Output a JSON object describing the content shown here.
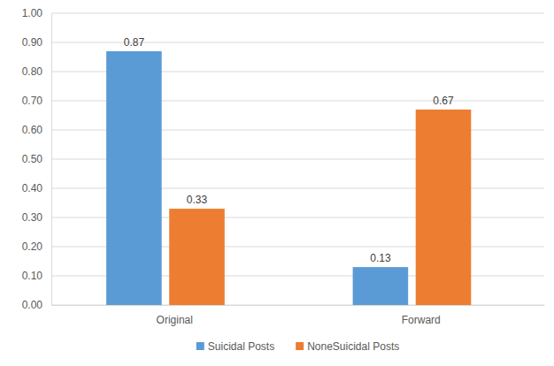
{
  "chart_data": {
    "type": "bar",
    "categories": [
      "Original",
      "Forward"
    ],
    "series": [
      {
        "name": "Suicidal Posts",
        "color": "#5b9bd5",
        "values": [
          0.87,
          0.13
        ]
      },
      {
        "name": "NoneSuicidal Posts",
        "color": "#ed7d31",
        "values": [
          0.33,
          0.67
        ]
      }
    ],
    "ylim": [
      0,
      1
    ],
    "yticks": [
      {
        "value": 0,
        "label": "0.00"
      },
      {
        "value": 0.1,
        "label": "0.10"
      },
      {
        "value": 0.2,
        "label": "0.20"
      },
      {
        "value": 0.3,
        "label": "0.30"
      },
      {
        "value": 0.4,
        "label": "0.40"
      },
      {
        "value": 0.5,
        "label": "0.50"
      },
      {
        "value": 0.6,
        "label": "0.60"
      },
      {
        "value": 0.7,
        "label": "0.70"
      },
      {
        "value": 0.8,
        "label": "0.80"
      },
      {
        "value": 0.9,
        "label": "0.90"
      },
      {
        "value": 1,
        "label": "1.00"
      }
    ],
    "grid": true,
    "legend": "bottom",
    "data_labels": true
  }
}
